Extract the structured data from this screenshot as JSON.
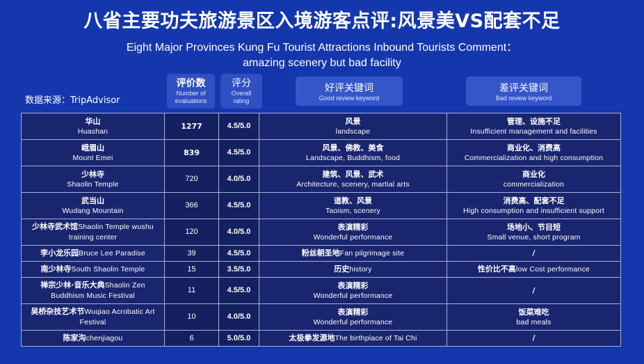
{
  "title": {
    "cn": "八省主要功夫旅游景区入境游客点评:风景美VS配套不足",
    "en_line1": "Eight Major Provinces Kung  Fu Tourist Attractions Inbound Tourists Comment：",
    "en_line2": "amazing scenery but bad facility"
  },
  "source": "数据来源：TripAdvisor",
  "headers": {
    "count": {
      "cn": "评价数",
      "en1": "Number of",
      "en2": "evaluations"
    },
    "rating": {
      "cn": "评分",
      "en1": "Overall",
      "en2": "rating"
    },
    "good": {
      "cn": "好评关键词",
      "en": "Good review keyword"
    },
    "bad": {
      "cn": "差评关键词",
      "en": "Bad review keyword"
    }
  },
  "rows": [
    {
      "name_cn": "华山",
      "name_en": "Huashan",
      "count": "1277",
      "rating": "4.5/5.0",
      "good_cn": "风景",
      "good_en": "landscape",
      "bad_cn": "管理、设施不足",
      "bad_en": "Insufficient management and facilities"
    },
    {
      "name_cn": "峨眉山",
      "name_en": "Mount Emei",
      "count": "839",
      "rating": "4.5/5.0",
      "good_cn": "风景、佛教、美食",
      "good_en": "Landscape, Buddhism, food",
      "bad_cn": "商业化、消费高",
      "bad_en": "Commercialization and high consumption"
    },
    {
      "name_cn": "少林寺",
      "name_en": "Shaolin Temple",
      "count": "720",
      "rating": "4.0/5.0",
      "good_cn": "建筑、风景、武术",
      "good_en": "Architecture, scenery, martial arts",
      "bad_cn": "商业化",
      "bad_en": "commercialization"
    },
    {
      "name_cn": "武当山",
      "name_en": "Wudang Mountain",
      "count": "366",
      "rating": "4.5/5.0",
      "good_cn": "道教、风景",
      "good_en": "Taoism, scenery",
      "bad_cn": "消费高、配套不足",
      "bad_en": "High consumption and insufficient support"
    },
    {
      "name_cn": "少林寺武术馆",
      "name_en": "Shaolin Temple wushu",
      "name_en2": "training center",
      "count": "120",
      "rating": "4.0/5.0",
      "good_cn": "表演精彩",
      "good_en": "Wonderful performance",
      "bad_cn": "场地小、节目短",
      "bad_en": "Small venue, short program"
    },
    {
      "name_cn": "李小龙乐园",
      "name_en": "Bruce Lee Paradise",
      "count": "39",
      "rating": "4.5/5.0",
      "good_cn": "粉丝朝圣地",
      "good_en": "Fan pilgrimage site",
      "bad_cn": "/",
      "bad_en": ""
    },
    {
      "name_cn": "南少林寺",
      "name_en": "South Shaolin Temple",
      "count": "15",
      "rating": "3.5/5.0",
      "good_cn": "历史",
      "good_en": "history",
      "bad_cn": "性价比不高",
      "bad_en": "low Cost performance"
    },
    {
      "name_cn": "禅宗少林·音乐大典",
      "name_en": "Shaolin Zen",
      "name_en2": "Buddhism Music Festival",
      "count": "11",
      "rating": "4.5/5.0",
      "good_cn": "表演精彩",
      "good_en": "Wonderful performance",
      "bad_cn": "/",
      "bad_en": ""
    },
    {
      "name_cn": "吴桥杂技艺术节",
      "name_en": "Wuqiao Acrobatic Art",
      "name_en2": "Festival",
      "count": "10",
      "rating": "4.0/5.0",
      "good_cn": "表演精彩",
      "good_en": "Wonderful performance",
      "bad_cn": "饭菜难吃",
      "bad_en": "bad meals"
    },
    {
      "name_cn": "陈家沟",
      "name_en": "chenjiagou",
      "count": "6",
      "rating": "5.0/5.0",
      "good_cn": "太极拳发源地",
      "good_en": "The birthplace of Tai Chi",
      "bad_cn": "/",
      "bad_en": ""
    }
  ]
}
